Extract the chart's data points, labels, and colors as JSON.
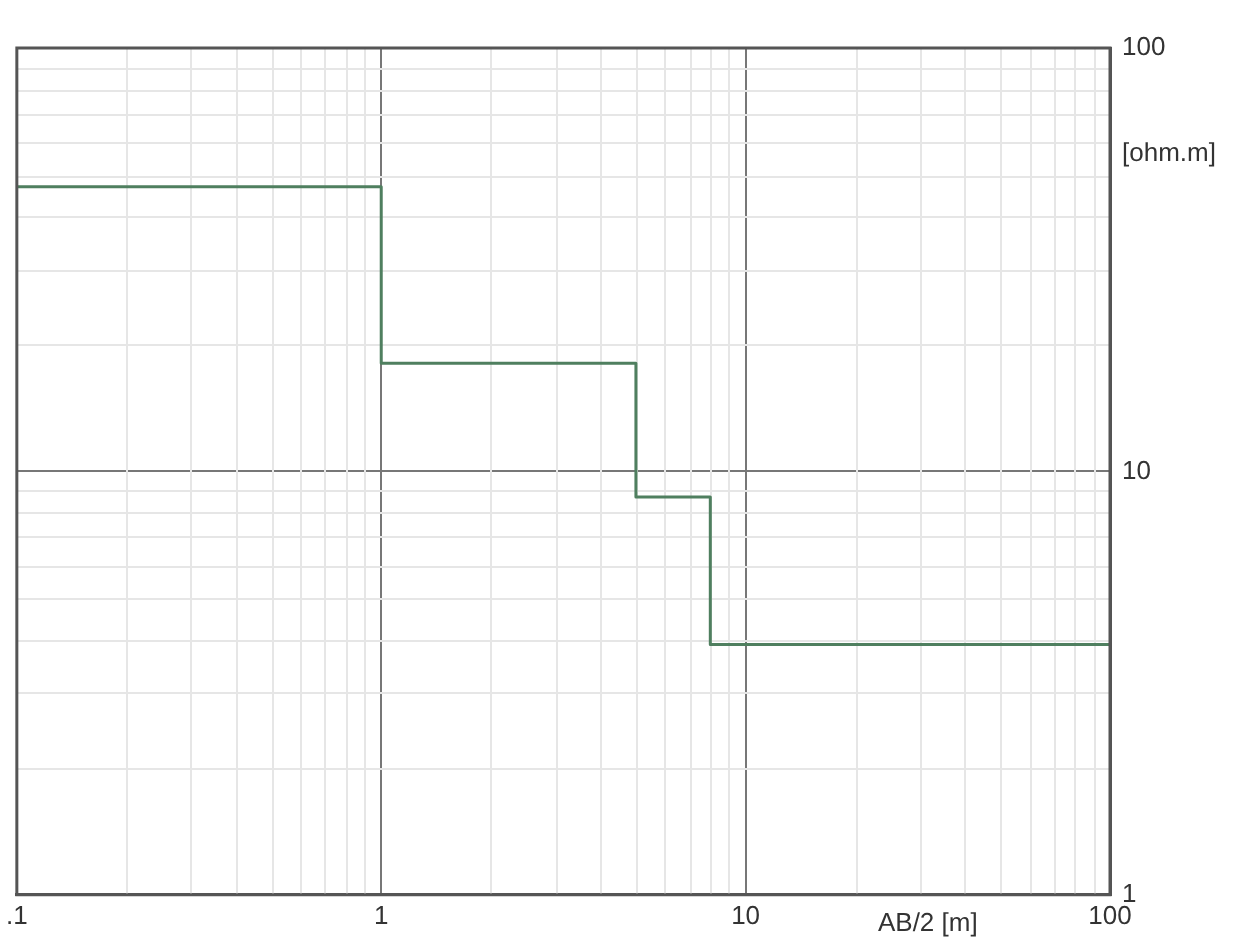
{
  "chart_data": {
    "type": "step",
    "xlabel": "AB/2 [m]",
    "ylabel": "[ohm.m]",
    "x": [
      0.1,
      1,
      5,
      8,
      100
    ],
    "series": [
      {
        "color": "#4f7f5f",
        "values": [
          47,
          18,
          8.7,
          3.9,
          3.9
        ]
      }
    ],
    "log": "xy",
    "xlim": [
      0.1,
      100
    ],
    "ylim": [
      1,
      100
    ],
    "xticks": [
      {
        "value": 0.1,
        "label": ".1"
      },
      1,
      10,
      100
    ],
    "yticks": [
      1,
      10,
      100
    ],
    "grid": true,
    "legend": false
  }
}
